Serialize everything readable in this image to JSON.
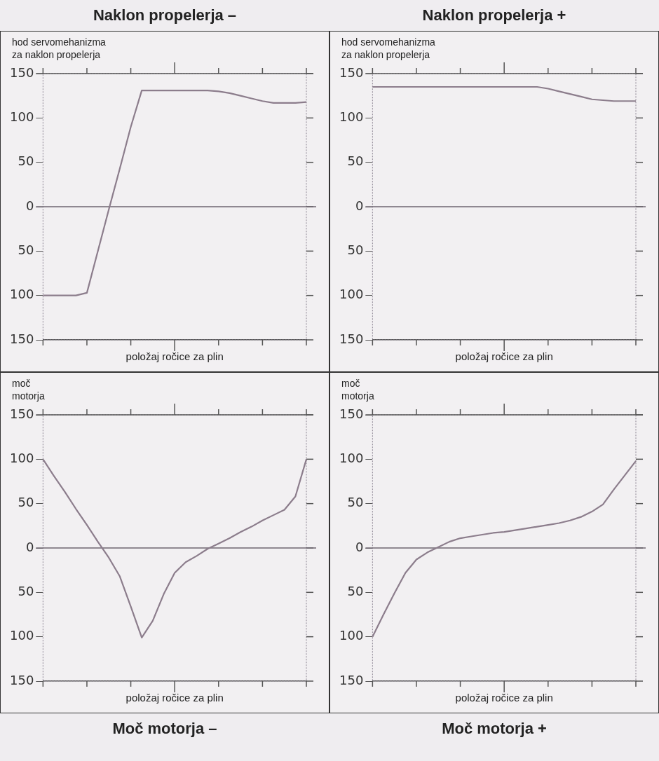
{
  "chart_data": [
    {
      "type": "line",
      "title": "Naklon propelerja –",
      "xlabel": "položaj ročice za plin",
      "ylabel": "hod servomehanizma\nza naklon propelerja",
      "tick_labels": "y",
      "grid": false,
      "legend": false,
      "marker": "none",
      "line_style": "solid",
      "categories": [
        null,
        null,
        null,
        null,
        null,
        null,
        null,
        null,
        null,
        null,
        null,
        null,
        null,
        null,
        null,
        null,
        null,
        null,
        null,
        null,
        null,
        null,
        null,
        null,
        null
      ],
      "ylim": [
        -150,
        150
      ],
      "yticks": [
        {
          "value": -150,
          "label": "150"
        },
        {
          "value": -100,
          "label": "100"
        },
        {
          "value": -50,
          "label": "50"
        },
        0,
        50,
        100,
        150
      ],
      "ref_lines": [
        {
          "axis": "y",
          "value": 0,
          "color": "#6e6670"
        }
      ],
      "series": [
        {
          "color": "#8c7d8c",
          "values": [
            -100,
            -100,
            -100,
            -100,
            -97,
            -50,
            -3,
            43,
            90,
            131,
            131,
            131,
            131,
            131,
            131,
            131,
            130,
            128,
            125,
            122,
            119,
            117,
            117,
            117,
            118
          ]
        }
      ]
    },
    {
      "type": "line",
      "title": "Naklon propelerja +",
      "xlabel": "položaj ročice za plin",
      "ylabel": "hod servomehanizma\nza naklon propelerja",
      "tick_labels": "y",
      "grid": false,
      "legend": false,
      "marker": "none",
      "line_style": "solid",
      "categories": [
        null,
        null,
        null,
        null,
        null,
        null,
        null,
        null,
        null,
        null,
        null,
        null,
        null,
        null,
        null,
        null,
        null,
        null,
        null,
        null,
        null,
        null,
        null,
        null,
        null
      ],
      "ylim": [
        -150,
        150
      ],
      "yticks": [
        {
          "value": -150,
          "label": "150"
        },
        {
          "value": -100,
          "label": "100"
        },
        {
          "value": -50,
          "label": "50"
        },
        0,
        50,
        100,
        150
      ],
      "ref_lines": [
        {
          "axis": "y",
          "value": 0,
          "color": "#6e6670"
        }
      ],
      "series": [
        {
          "color": "#8c7d8c",
          "values": [
            135,
            135,
            135,
            135,
            135,
            135,
            135,
            135,
            135,
            135,
            135,
            135,
            135,
            135,
            135,
            135,
            133,
            130,
            127,
            124,
            121,
            120,
            119,
            119,
            119
          ]
        }
      ]
    },
    {
      "type": "line",
      "title": "Moč motorja –",
      "xlabel": "položaj ročice za plin",
      "ylabel": "moč\nmotorja",
      "tick_labels": "y",
      "grid": false,
      "legend": false,
      "marker": "none",
      "line_style": "solid",
      "categories": [
        null,
        null,
        null,
        null,
        null,
        null,
        null,
        null,
        null,
        null,
        null,
        null,
        null,
        null,
        null,
        null,
        null,
        null,
        null,
        null,
        null,
        null,
        null,
        null,
        null
      ],
      "ylim": [
        -150,
        150
      ],
      "yticks": [
        {
          "value": -150,
          "label": "150"
        },
        {
          "value": -100,
          "label": "100"
        },
        {
          "value": -50,
          "label": "50"
        },
        0,
        50,
        100,
        150
      ],
      "ref_lines": [
        {
          "axis": "y",
          "value": 0,
          "color": "#6e6670"
        }
      ],
      "series": [
        {
          "color": "#8c7d8c",
          "values": [
            100,
            81,
            63,
            44,
            26,
            7,
            -11,
            -32,
            -66,
            -101,
            -82,
            -52,
            -28,
            -16,
            -9,
            -1,
            5,
            11,
            18,
            24,
            31,
            37,
            43,
            58,
            100
          ]
        }
      ]
    },
    {
      "type": "line",
      "title": "Moč motorja +",
      "xlabel": "položaj ročice za plin",
      "ylabel": "moč\nmotorja",
      "tick_labels": "y",
      "grid": false,
      "legend": false,
      "marker": "none",
      "line_style": "solid",
      "categories": [
        null,
        null,
        null,
        null,
        null,
        null,
        null,
        null,
        null,
        null,
        null,
        null,
        null,
        null,
        null,
        null,
        null,
        null,
        null,
        null,
        null,
        null,
        null,
        null,
        null
      ],
      "ylim": [
        -150,
        150
      ],
      "yticks": [
        {
          "value": -150,
          "label": "150"
        },
        {
          "value": -100,
          "label": "100"
        },
        {
          "value": -50,
          "label": "50"
        },
        0,
        50,
        100,
        150
      ],
      "ref_lines": [
        {
          "axis": "y",
          "value": 0,
          "color": "#6e6670"
        }
      ],
      "series": [
        {
          "color": "#8c7d8c",
          "values": [
            -100,
            -75,
            -51,
            -28,
            -13,
            -5,
            1,
            7,
            11,
            13,
            15,
            17,
            18,
            20,
            22,
            24,
            26,
            28,
            31,
            35,
            41,
            49,
            66,
            82,
            98
          ]
        }
      ]
    }
  ]
}
